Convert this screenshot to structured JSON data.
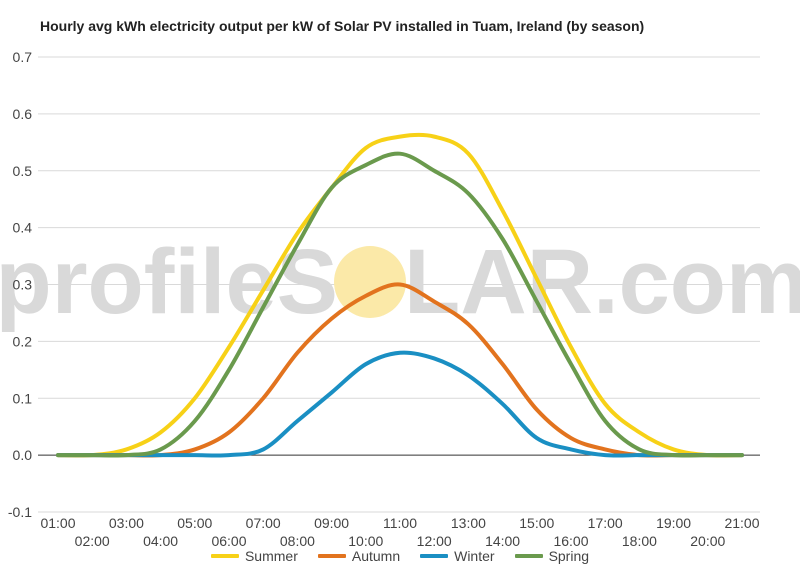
{
  "title": "Hourly avg kWh electricity output per kW of Solar PV installed in Tuam, Ireland (by season)",
  "watermark": {
    "text_before": "profileS",
    "text_after": "LAR.com",
    "sun_color": "#fbe9a8",
    "text_color": "#d9d9d9"
  },
  "chart_data": {
    "type": "line",
    "title": "Hourly avg kWh electricity output per kW of Solar PV installed in Tuam, Ireland (by season)",
    "xlabel": "",
    "ylabel": "",
    "ylim": [
      -0.1,
      0.7
    ],
    "yticks": [
      "-0.1",
      "0.0",
      "0.1",
      "0.2",
      "0.3",
      "0.4",
      "0.5",
      "0.6",
      "0.7"
    ],
    "x": [
      "01:00",
      "02:00",
      "03:00",
      "04:00",
      "05:00",
      "06:00",
      "07:00",
      "08:00",
      "09:00",
      "10:00",
      "11:00",
      "12:00",
      "13:00",
      "14:00",
      "15:00",
      "16:00",
      "17:00",
      "18:00",
      "19:00",
      "20:00",
      "21:00"
    ],
    "grid": true,
    "legend_position": "bottom",
    "series": [
      {
        "name": "Summer",
        "color": "#f7d117",
        "values": [
          0.0,
          0.0,
          0.01,
          0.04,
          0.1,
          0.19,
          0.29,
          0.39,
          0.47,
          0.54,
          0.56,
          0.56,
          0.53,
          0.43,
          0.31,
          0.19,
          0.09,
          0.04,
          0.01,
          0.0,
          0.0
        ]
      },
      {
        "name": "Autumn",
        "color": "#e2731e",
        "values": [
          0.0,
          0.0,
          0.0,
          0.0,
          0.01,
          0.04,
          0.1,
          0.18,
          0.24,
          0.28,
          0.3,
          0.27,
          0.23,
          0.16,
          0.08,
          0.03,
          0.01,
          0.0,
          0.0,
          0.0,
          0.0
        ]
      },
      {
        "name": "Winter",
        "color": "#1a8fc3",
        "values": [
          0.0,
          0.0,
          0.0,
          0.0,
          0.0,
          0.0,
          0.01,
          0.06,
          0.11,
          0.16,
          0.18,
          0.17,
          0.14,
          0.09,
          0.03,
          0.01,
          0.0,
          0.0,
          0.0,
          0.0,
          0.0
        ]
      },
      {
        "name": "Spring",
        "color": "#6a9a4d",
        "values": [
          0.0,
          0.0,
          0.0,
          0.01,
          0.06,
          0.15,
          0.26,
          0.37,
          0.47,
          0.51,
          0.53,
          0.5,
          0.46,
          0.38,
          0.27,
          0.16,
          0.06,
          0.01,
          0.0,
          0.0,
          0.0
        ]
      }
    ]
  }
}
